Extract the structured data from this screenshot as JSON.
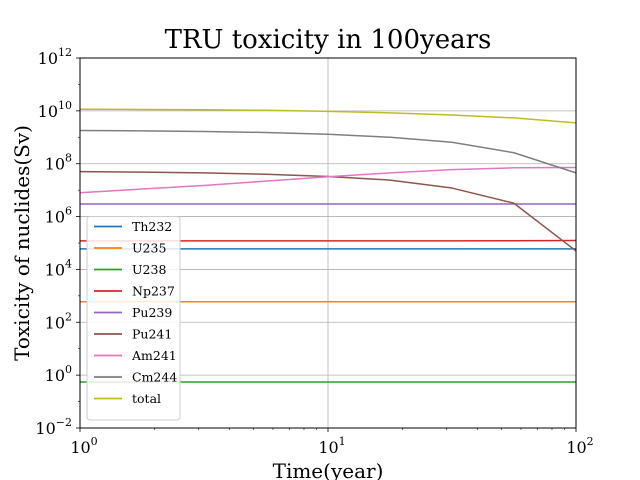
{
  "chart_data": {
    "type": "line",
    "title": "TRU toxicity in 100years",
    "xlabel": "Time(year)",
    "ylabel": "Toxicity of nuclides(Sv)",
    "xscale": "log",
    "yscale": "log",
    "xlim": [
      1,
      100
    ],
    "ylim": [
      0.01,
      1000000000000
    ],
    "xticks": [
      {
        "base": "10",
        "exp": "0",
        "value": 1
      },
      {
        "base": "10",
        "exp": "1",
        "value": 10
      },
      {
        "base": "10",
        "exp": "2",
        "value": 100
      }
    ],
    "yticks": [
      {
        "base": "10",
        "exp": "−2",
        "value": 0.01
      },
      {
        "base": "10",
        "exp": "0",
        "value": 1
      },
      {
        "base": "10",
        "exp": "2",
        "value": 100
      },
      {
        "base": "10",
        "exp": "4",
        "value": 10000
      },
      {
        "base": "10",
        "exp": "6",
        "value": 1000000
      },
      {
        "base": "10",
        "exp": "8",
        "value": 100000000
      },
      {
        "base": "10",
        "exp": "10",
        "value": 10000000000
      },
      {
        "base": "10",
        "exp": "12",
        "value": 1000000000000
      }
    ],
    "grid": true,
    "legend_position": "lower-left",
    "x": [
      1,
      1.78,
      3.16,
      5.62,
      10,
      17.8,
      31.6,
      56.2,
      100
    ],
    "series": [
      {
        "name": "Th232",
        "color": "#1f77b4",
        "values": [
          60000,
          60000,
          60000,
          60000,
          60000,
          60000,
          60000,
          60000,
          60000
        ]
      },
      {
        "name": "U235",
        "color": "#ff7f0e",
        "values": [
          600,
          600,
          600,
          600,
          600,
          600,
          600,
          600,
          600
        ]
      },
      {
        "name": "U238",
        "color": "#2ca02c",
        "values": [
          0.55,
          0.55,
          0.55,
          0.55,
          0.55,
          0.55,
          0.55,
          0.55,
          0.55
        ]
      },
      {
        "name": "Np237",
        "color": "#d62728",
        "values": [
          120000,
          120000,
          120000,
          120000,
          120000,
          120000,
          120000,
          122000,
          125000
        ]
      },
      {
        "name": "Pu239",
        "color": "#9467bd",
        "values": [
          3000000,
          3000000,
          3000000,
          3000000,
          3000000,
          3000000,
          3000000,
          3000000,
          3000000
        ]
      },
      {
        "name": "Pu241",
        "color": "#8c564b",
        "values": [
          50000000,
          48000000,
          45000000,
          40000000,
          33000000,
          24000000,
          12000000,
          3200000,
          50000
        ]
      },
      {
        "name": "Am241",
        "color": "#e377c2",
        "values": [
          8000000,
          11000000,
          15000000,
          22000000,
          32000000,
          45000000,
          60000000,
          70000000,
          72000000
        ]
      },
      {
        "name": "Cm244",
        "color": "#7f7f7f",
        "values": [
          1800000000,
          1750000000,
          1650000000,
          1520000000,
          1300000000,
          1000000000,
          650000000,
          260000000,
          45000000
        ]
      },
      {
        "name": "total",
        "color": "#bcbd22",
        "values": [
          11500000000,
          11300000000,
          11000000000,
          10500000000,
          9600000000,
          8400000000,
          7000000000,
          5400000000,
          3500000000
        ]
      }
    ]
  }
}
